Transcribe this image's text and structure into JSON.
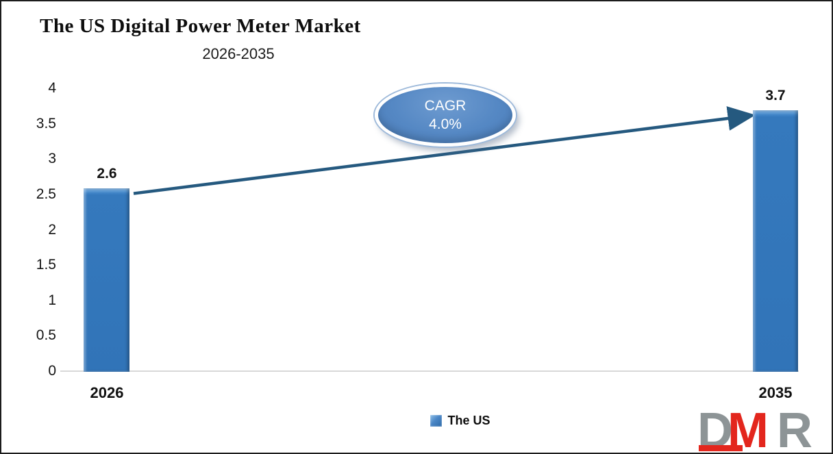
{
  "header": {
    "title": "The US Digital Power Meter Market",
    "subtitle": "2026-2035"
  },
  "chart_data": {
    "type": "bar",
    "title": "The US Digital Power Meter Market",
    "subtitle": "2026-2035",
    "categories": [
      "2026",
      "2035"
    ],
    "series": [
      {
        "name": "The US",
        "values": [
          2.6,
          3.7
        ]
      }
    ],
    "value_labels": [
      "2.6",
      "3.7"
    ],
    "ylim": [
      0,
      4
    ],
    "yticks": [
      0,
      0.5,
      1,
      1.5,
      2,
      2.5,
      3,
      3.5,
      4
    ],
    "ytick_labels": [
      "0",
      "0.5",
      "1",
      "1.5",
      "2",
      "2.5",
      "3",
      "3.5",
      "4"
    ],
    "grid": false,
    "legend_position": "bottom",
    "bar_color": "#3579bd",
    "axis_line_color": "#d8d8d8",
    "annotation": {
      "shape": "ellipse",
      "label": "CAGR",
      "value": "4.0%",
      "fill": "#5588c4",
      "text_color": "#ffffff"
    },
    "trend_arrow": {
      "from_category": "2026",
      "to_category": "2035",
      "color": "#25597f"
    }
  },
  "legend": {
    "items": [
      {
        "label": "The US",
        "color": "#3579bd"
      }
    ]
  },
  "logo": {
    "letters": [
      {
        "char": "D",
        "color": "#8d9496"
      },
      {
        "char": "M",
        "color": "#e3261d"
      },
      {
        "char": "R",
        "color": "#8d9496"
      }
    ]
  }
}
